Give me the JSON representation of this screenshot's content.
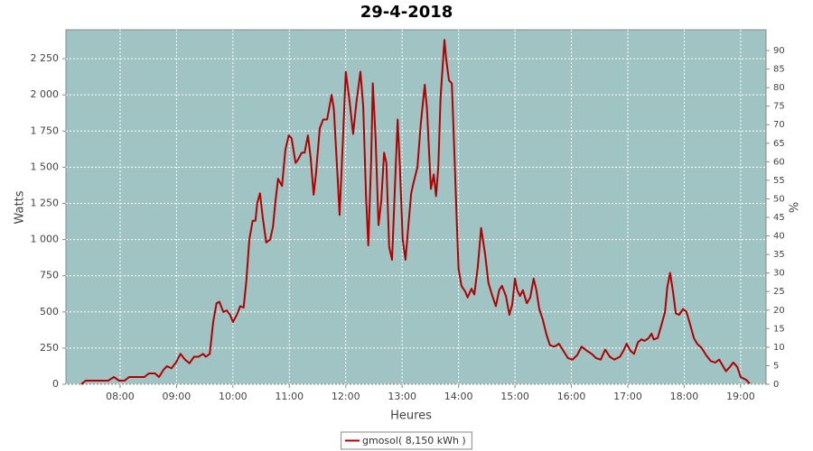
{
  "chart_data": {
    "type": "line",
    "title": "29-4-2018",
    "x_label": "Heures",
    "y_label": "Watts",
    "y2_label": "%",
    "background": "#a0c4c4",
    "grid": true,
    "legend": "bottom",
    "xlim": [
      7.04,
      19.45
    ],
    "xticks": [
      {
        "value": 8,
        "label": "08:00"
      },
      {
        "value": 9,
        "label": "09:00"
      },
      {
        "value": 10,
        "label": "10:00"
      },
      {
        "value": 11,
        "label": "11:00"
      },
      {
        "value": 12,
        "label": "12:00"
      },
      {
        "value": 13,
        "label": "13:00"
      },
      {
        "value": 14,
        "label": "14:00"
      },
      {
        "value": 15,
        "label": "15:00"
      },
      {
        "value": 16,
        "label": "16:00"
      },
      {
        "value": 17,
        "label": "17:00"
      },
      {
        "value": 18,
        "label": "18:00"
      },
      {
        "value": 19,
        "label": "19:00"
      }
    ],
    "ylim": [
      0,
      2450
    ],
    "yticks": [
      0,
      250,
      500,
      750,
      {
        "value": 1000,
        "label": "1 000"
      },
      {
        "value": 1250,
        "label": "1 250"
      },
      {
        "value": 1500,
        "label": "1 500"
      },
      {
        "value": 1750,
        "label": "1 750"
      },
      {
        "value": 2000,
        "label": "2 000"
      },
      {
        "value": 2250,
        "label": "2 250"
      }
    ],
    "y2lim": [
      0,
      95.6
    ],
    "y2ticks": [
      0,
      5,
      10,
      15,
      20,
      25,
      30,
      35,
      40,
      45,
      50,
      55,
      60,
      65,
      70,
      75,
      80,
      85,
      90
    ],
    "x": [
      7.31,
      7.39,
      7.79,
      7.89,
      7.98,
      8.08,
      8.16,
      8.43,
      8.51,
      8.62,
      8.69,
      8.77,
      8.83,
      8.91,
      8.99,
      9.07,
      9.15,
      9.23,
      9.31,
      9.39,
      9.47,
      9.52,
      9.59,
      9.65,
      9.71,
      9.76,
      9.83,
      9.89,
      9.95,
      10.0,
      10.07,
      10.13,
      10.19,
      10.24,
      10.29,
      10.35,
      10.4,
      10.43,
      10.48,
      10.53,
      10.59,
      10.66,
      10.71,
      10.75,
      10.8,
      10.87,
      10.93,
      10.99,
      11.04,
      11.11,
      11.15,
      11.22,
      11.27,
      11.33,
      11.38,
      11.43,
      11.47,
      11.54,
      11.6,
      11.67,
      11.75,
      11.79,
      11.86,
      11.89,
      11.94,
      12.0,
      12.07,
      12.13,
      12.19,
      12.26,
      12.31,
      12.36,
      12.4,
      12.45,
      12.48,
      12.53,
      12.58,
      12.63,
      12.68,
      12.72,
      12.77,
      12.82,
      12.87,
      12.92,
      12.96,
      13.01,
      13.06,
      13.11,
      13.16,
      13.2,
      13.27,
      13.33,
      13.4,
      13.44,
      13.51,
      13.56,
      13.6,
      13.64,
      13.68,
      13.75,
      13.78,
      13.83,
      13.88,
      13.92,
      13.97,
      14.0,
      14.05,
      14.12,
      14.16,
      14.23,
      14.28,
      14.34,
      14.4,
      14.47,
      14.53,
      14.6,
      14.66,
      14.72,
      14.77,
      14.84,
      14.9,
      14.95,
      15.0,
      15.04,
      15.09,
      15.14,
      15.21,
      15.27,
      15.33,
      15.38,
      15.43,
      15.49,
      15.56,
      15.62,
      15.7,
      15.78,
      15.86,
      15.94,
      16.02,
      16.1,
      16.18,
      16.28,
      16.36,
      16.44,
      16.52,
      16.6,
      16.68,
      16.76,
      16.86,
      16.92,
      16.98,
      17.05,
      17.11,
      17.18,
      17.24,
      17.3,
      17.37,
      17.42,
      17.46,
      17.53,
      17.59,
      17.66,
      17.7,
      17.75,
      17.8,
      17.85,
      17.91,
      17.98,
      18.04,
      18.1,
      18.17,
      18.23,
      18.31,
      18.39,
      18.47,
      18.55,
      18.62,
      18.68,
      18.74,
      18.81,
      18.87,
      18.94,
      19.0,
      19.1,
      19.16
    ],
    "series": [
      {
        "name": "gmosol( 8,150 kWh )",
        "color": "#b00000",
        "values": [
          0,
          25,
          25,
          50,
          25,
          25,
          50,
          50,
          75,
          75,
          50,
          100,
          125,
          110,
          150,
          210,
          170,
          145,
          190,
          190,
          210,
          190,
          210,
          430,
          560,
          570,
          500,
          510,
          480,
          430,
          480,
          540,
          530,
          720,
          1000,
          1130,
          1130,
          1250,
          1320,
          1150,
          980,
          1000,
          1090,
          1250,
          1420,
          1370,
          1620,
          1720,
          1700,
          1530,
          1550,
          1600,
          1600,
          1720,
          1560,
          1310,
          1450,
          1770,
          1830,
          1830,
          2000,
          1900,
          1400,
          1170,
          1600,
          2160,
          1950,
          1730,
          1950,
          2160,
          1920,
          1300,
          960,
          1550,
          2080,
          1700,
          1100,
          1270,
          1600,
          1530,
          950,
          860,
          1350,
          1830,
          1500,
          1000,
          860,
          1100,
          1320,
          1390,
          1500,
          1800,
          2070,
          1900,
          1350,
          1450,
          1300,
          1500,
          1980,
          2380,
          2250,
          2100,
          2080,
          1650,
          1100,
          800,
          680,
          640,
          600,
          660,
          620,
          810,
          1080,
          900,
          700,
          610,
          540,
          650,
          680,
          610,
          480,
          550,
          730,
          650,
          610,
          650,
          560,
          600,
          730,
          650,
          520,
          450,
          340,
          270,
          260,
          280,
          230,
          180,
          170,
          200,
          260,
          230,
          210,
          180,
          170,
          240,
          190,
          170,
          190,
          230,
          280,
          230,
          210,
          290,
          310,
          300,
          320,
          350,
          310,
          320,
          400,
          500,
          670,
          770,
          640,
          490,
          480,
          520,
          500,
          420,
          320,
          280,
          250,
          200,
          160,
          150,
          170,
          130,
          90,
          120,
          150,
          120,
          50,
          30,
          5
        ]
      }
    ]
  }
}
